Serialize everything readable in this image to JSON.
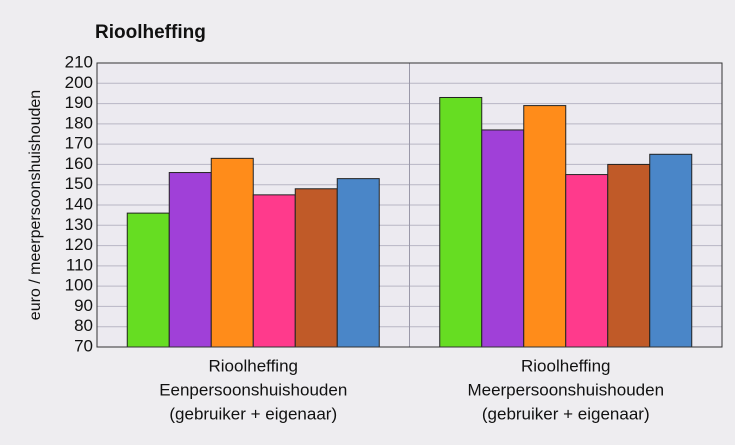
{
  "chart_data": {
    "type": "bar",
    "title": "Rioolheffing",
    "y_label": "euro / meerpersoonshuishouden",
    "categories": [
      [
        "Rioolheffing",
        "Eenpersoonshuishouden",
        "(gebruiker + eigenaar)"
      ],
      [
        "Rioolheffing",
        "Meerpersoonshuishouden",
        "(gebruiker + eigenaar)"
      ]
    ],
    "series": [
      {
        "color": "#66dd22",
        "values": [
          136,
          193
        ]
      },
      {
        "color": "#a040d8",
        "values": [
          156,
          177
        ]
      },
      {
        "color": "#ff8c1a",
        "values": [
          163,
          189
        ]
      },
      {
        "color": "#ff3a8c",
        "values": [
          145,
          155
        ]
      },
      {
        "color": "#c05a28",
        "values": [
          148,
          160
        ]
      },
      {
        "color": "#4a86c8",
        "values": [
          153,
          165
        ]
      }
    ],
    "ylim": [
      70,
      210
    ],
    "yticks": [
      70,
      80,
      90,
      100,
      110,
      120,
      130,
      140,
      150,
      160,
      170,
      180,
      190,
      200,
      210
    ],
    "grid": true
  }
}
